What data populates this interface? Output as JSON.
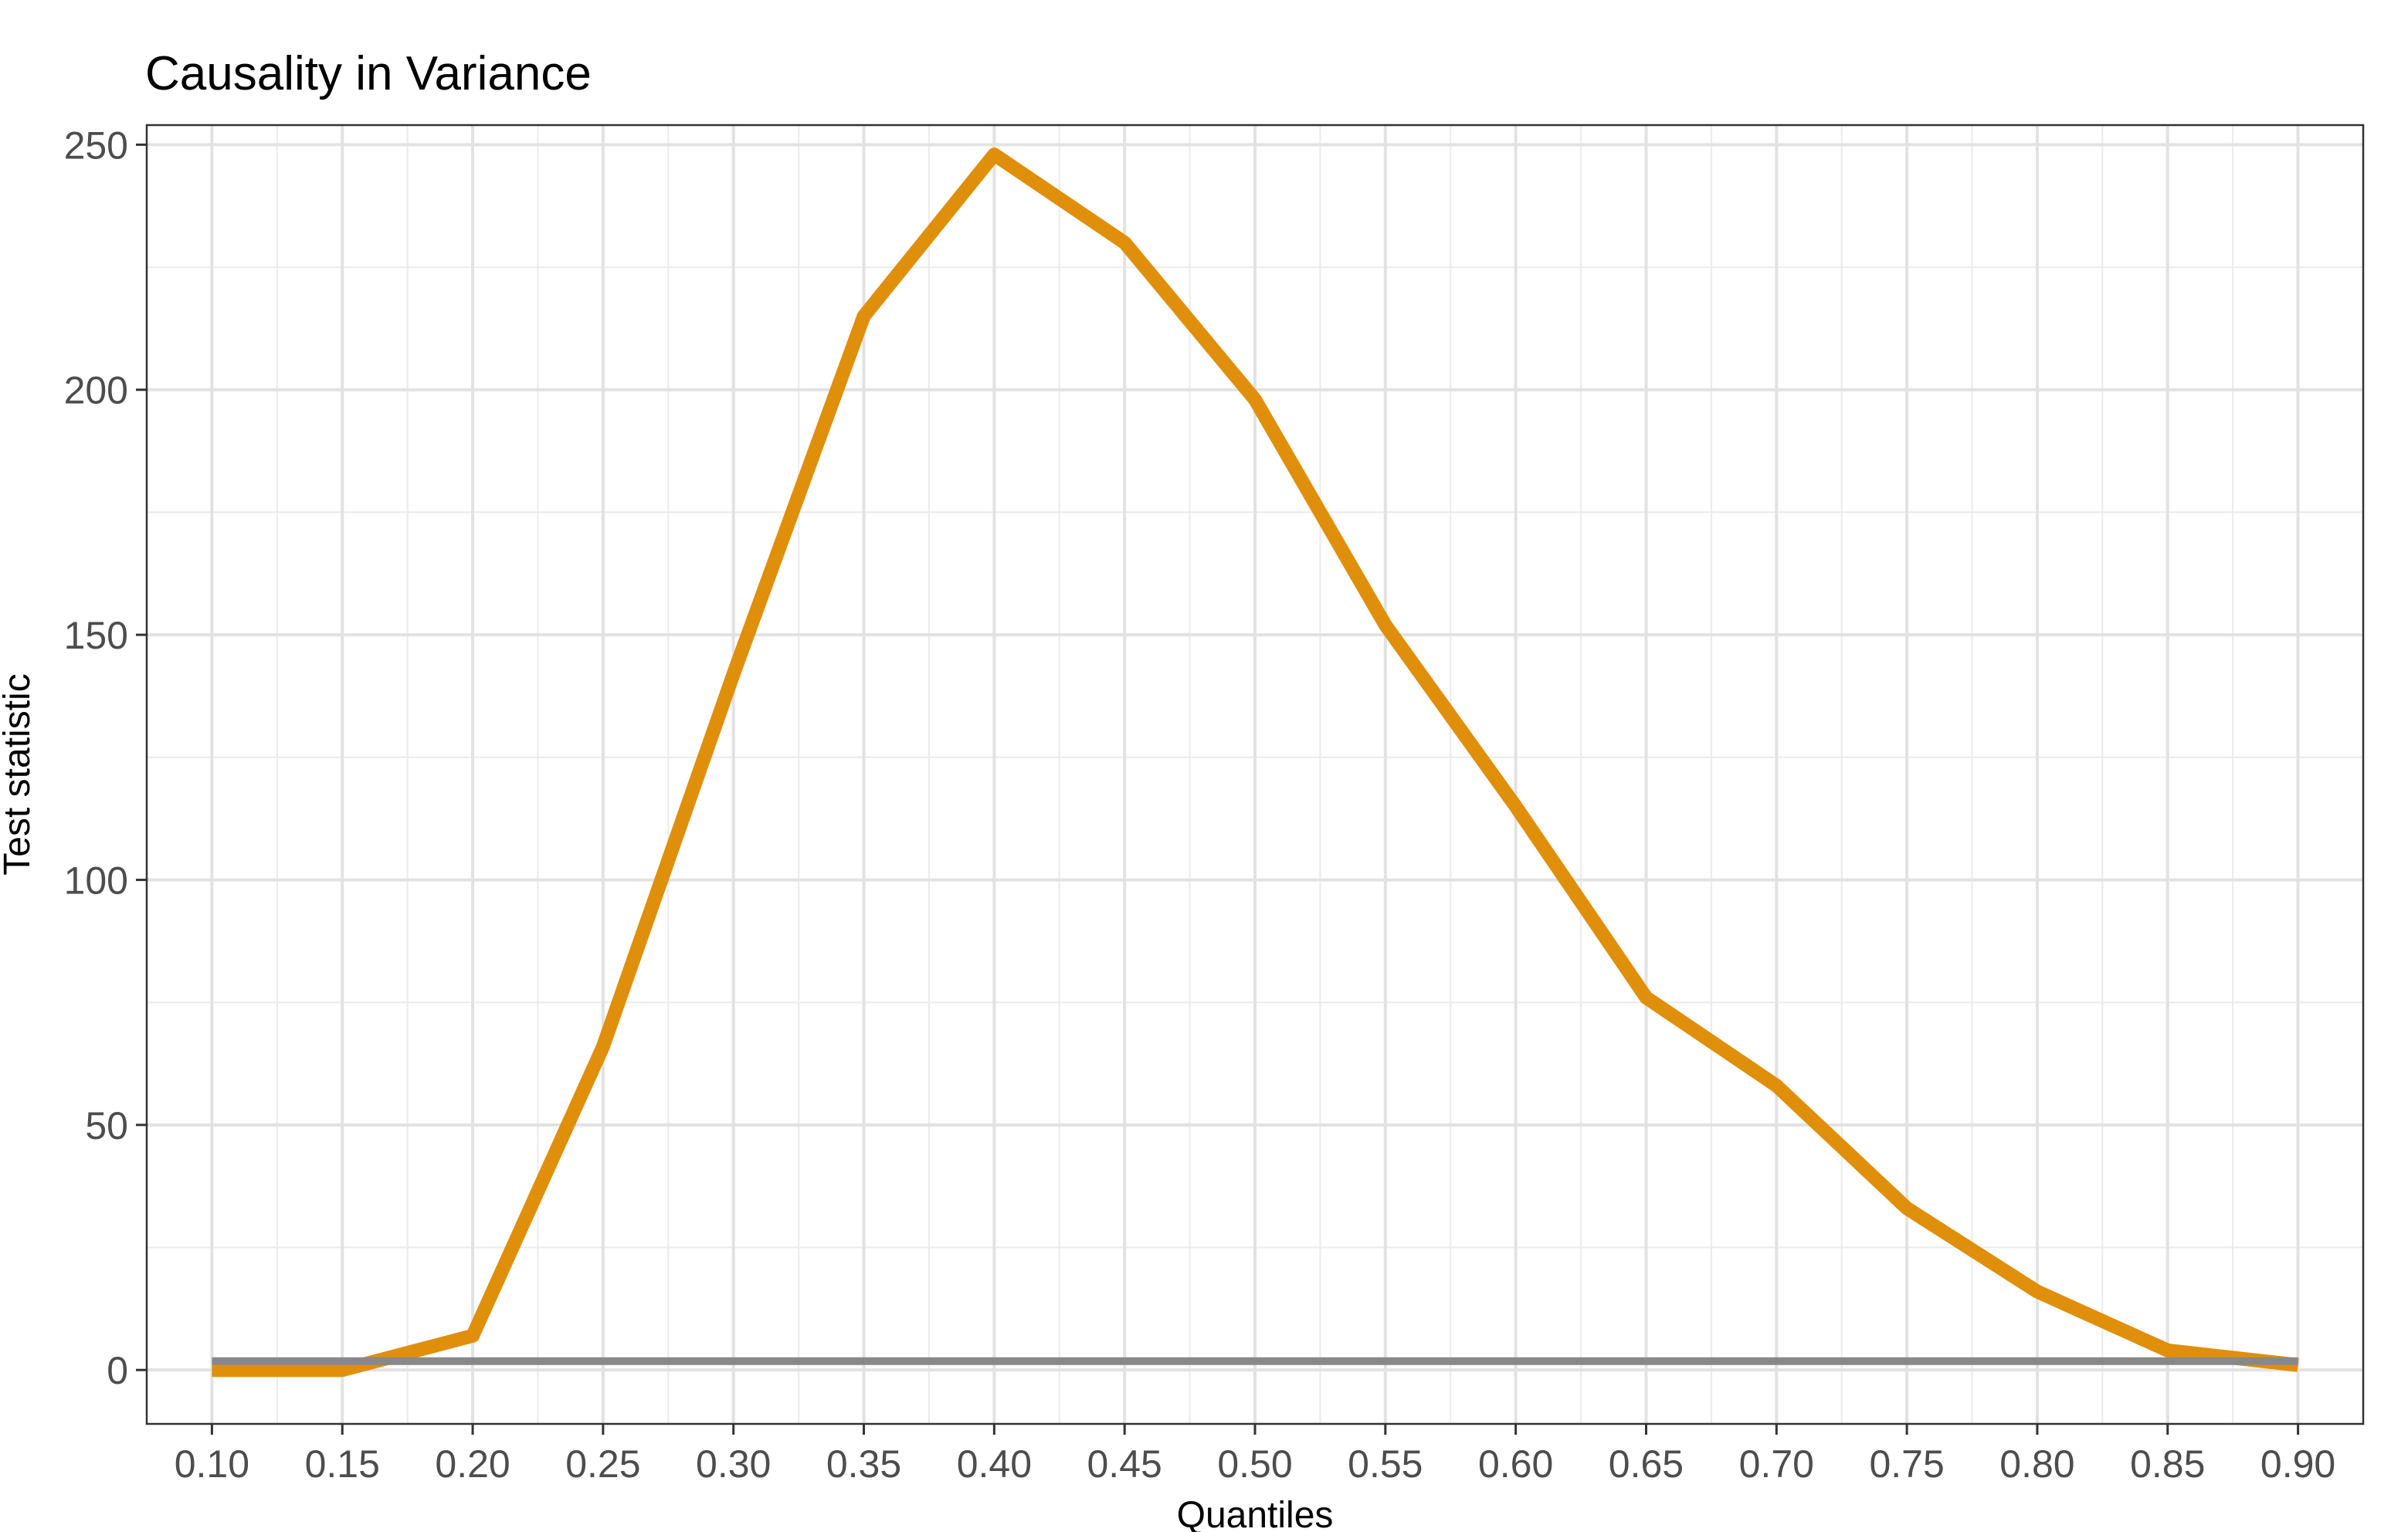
{
  "chart_data": {
    "type": "line",
    "title": "Causality in Variance",
    "xlabel": "Quantiles",
    "ylabel": "Test statistic",
    "x": [
      0.1,
      0.15,
      0.2,
      0.25,
      0.3,
      0.35,
      0.4,
      0.45,
      0.5,
      0.55,
      0.6,
      0.65,
      0.7,
      0.75,
      0.8,
      0.85,
      0.9
    ],
    "x_tick_labels": [
      "0.10",
      "0.15",
      "0.20",
      "0.25",
      "0.30",
      "0.35",
      "0.40",
      "0.45",
      "0.50",
      "0.55",
      "0.60",
      "0.65",
      "0.70",
      "0.75",
      "0.80",
      "0.85",
      "0.90"
    ],
    "y_ticks": [
      0,
      50,
      100,
      150,
      200,
      250
    ],
    "y_tick_labels": [
      "0",
      "50",
      "100",
      "150",
      "200",
      "250"
    ],
    "xlim": [
      0.075,
      0.925
    ],
    "ylim": [
      -11,
      254
    ],
    "grid": true,
    "series": [
      {
        "color": "#E08F0B",
        "values": [
          0,
          0,
          7,
          66,
          142,
          215,
          248,
          230,
          198,
          152,
          115,
          76,
          58,
          33,
          16,
          4,
          1
        ]
      },
      {
        "color": "#888888",
        "values": [
          1.8,
          1.8,
          1.8,
          1.8,
          1.8,
          1.8,
          1.8,
          1.8,
          1.8,
          1.8,
          1.8,
          1.8,
          1.8,
          1.8,
          1.8,
          1.8,
          1.8
        ]
      }
    ]
  }
}
